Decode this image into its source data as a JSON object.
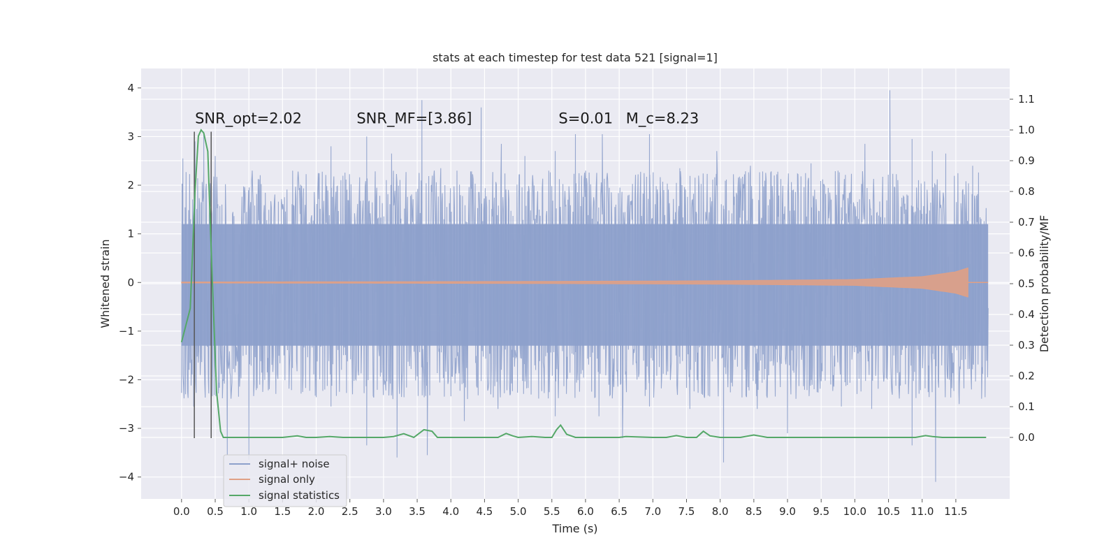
{
  "chart_data": {
    "type": "line",
    "title": "stats at each timestep for test data 521 [signal=1]",
    "xlabel": "Time (s)",
    "ylabel": "Whitened strain",
    "ylabel_right": "Detection probability/MF",
    "xlim": [
      -0.6,
      12.3
    ],
    "ylim": [
      -4.45,
      4.4
    ],
    "ylim_right": [
      -0.2,
      1.2
    ],
    "x_ticks": [
      "0.0",
      "0.5",
      "1.0",
      "1.5",
      "2.0",
      "2.5",
      "3.0",
      "3.5",
      "4.0",
      "4.5",
      "5.0",
      "5.5",
      "6.0",
      "6.5",
      "7.0",
      "7.5",
      "8.0",
      "8.5",
      "9.0",
      "9.5",
      "10.0",
      "10.5",
      "11.0",
      "11.5"
    ],
    "y_ticks": [
      "−4",
      "−3",
      "−2",
      "−1",
      "0",
      "1",
      "2",
      "3",
      "4"
    ],
    "y_ticks_right": [
      "0.0",
      "0.1",
      "0.2",
      "0.3",
      "0.4",
      "0.5",
      "0.6",
      "0.7",
      "0.8",
      "0.9",
      "1.0",
      "1.1"
    ],
    "grid": true,
    "legend_position": "lower-left",
    "annotations": [
      {
        "id": "snr-opt",
        "text": "SNR_opt=2.02",
        "x": 0.2,
        "y": 3.2
      },
      {
        "id": "snr-mf",
        "text": "SNR_MF=[3.86]",
        "x": 2.6,
        "y": 3.2
      },
      {
        "id": "s-val",
        "text": "S=0.01",
        "x": 5.6,
        "y": 3.2
      },
      {
        "id": "mc-val",
        "text": "M_c=8.23",
        "x": 6.6,
        "y": 3.2
      }
    ],
    "vertical_lines": [
      0.19,
      0.44
    ],
    "vertical_line_range": [
      -3.2,
      3.1
    ],
    "series": [
      {
        "name": "signal+ noise",
        "color": "#8da0cb",
        "axis": "left",
        "x_range": [
          0.0,
          11.98
        ],
        "typical_range": [
          -1.3,
          1.2
        ],
        "peaks": [
          [
            0.02,
            2.55
          ],
          [
            0.2,
            2.9
          ],
          [
            0.33,
            3.1
          ],
          [
            0.5,
            2.6
          ],
          [
            1.05,
            2.3
          ],
          [
            1.65,
            2.3
          ],
          [
            2.22,
            2.8
          ],
          [
            2.75,
            3.0
          ],
          [
            3.12,
            2.65
          ],
          [
            3.57,
            3.75
          ],
          [
            3.85,
            2.35
          ],
          [
            4.45,
            3.6
          ],
          [
            4.75,
            2.85
          ],
          [
            5.1,
            2.6
          ],
          [
            5.55,
            2.7
          ],
          [
            5.85,
            3.05
          ],
          [
            6.25,
            3.05
          ],
          [
            6.95,
            3.05
          ],
          [
            7.4,
            2.35
          ],
          [
            7.95,
            2.7
          ],
          [
            8.45,
            2.4
          ],
          [
            9.35,
            2.45
          ],
          [
            9.75,
            2.3
          ],
          [
            10.15,
            2.85
          ],
          [
            10.52,
            3.95
          ],
          [
            10.85,
            2.95
          ],
          [
            11.15,
            2.7
          ],
          [
            11.35,
            2.65
          ],
          [
            11.75,
            2.4
          ],
          [
            0.18,
            -2.55
          ],
          [
            0.68,
            -3.55
          ],
          [
            1.0,
            -3.65
          ],
          [
            2.22,
            -2.55
          ],
          [
            2.75,
            -3.35
          ],
          [
            3.2,
            -3.6
          ],
          [
            3.65,
            -3.55
          ],
          [
            4.2,
            -2.85
          ],
          [
            4.7,
            -2.6
          ],
          [
            5.55,
            -2.75
          ],
          [
            6.2,
            -2.75
          ],
          [
            6.55,
            -3.2
          ],
          [
            6.95,
            -2.55
          ],
          [
            7.55,
            -2.6
          ],
          [
            8.05,
            -3.7
          ],
          [
            8.55,
            -2.6
          ],
          [
            9.0,
            -3.1
          ],
          [
            9.8,
            -2.55
          ],
          [
            10.25,
            -2.6
          ],
          [
            10.85,
            -3.35
          ],
          [
            11.2,
            -4.1
          ],
          [
            11.55,
            -2.5
          ]
        ]
      },
      {
        "name": "signal only",
        "color": "#e0a085",
        "axis": "left",
        "x_range": [
          0.0,
          11.68
        ],
        "chirp_envelope": [
          [
            0.0,
            0.01
          ],
          [
            5.0,
            0.02
          ],
          [
            8.0,
            0.035
          ],
          [
            10.0,
            0.06
          ],
          [
            11.0,
            0.12
          ],
          [
            11.5,
            0.22
          ],
          [
            11.68,
            0.3
          ]
        ]
      },
      {
        "name": "signal statistics",
        "color": "#55a868",
        "axis": "right",
        "x": [
          0.0,
          0.13,
          0.2,
          0.25,
          0.29,
          0.33,
          0.39,
          0.45,
          0.52,
          0.58,
          0.62,
          1.0,
          1.5,
          1.72,
          1.85,
          2.0,
          2.2,
          2.4,
          2.7,
          3.0,
          3.15,
          3.3,
          3.45,
          3.6,
          3.72,
          3.8,
          3.9,
          4.2,
          4.5,
          4.7,
          4.82,
          4.92,
          5.0,
          5.2,
          5.4,
          5.5,
          5.57,
          5.63,
          5.72,
          5.85,
          6.0,
          6.5,
          6.6,
          7.0,
          7.2,
          7.35,
          7.5,
          7.65,
          7.75,
          7.85,
          8.0,
          8.3,
          8.5,
          8.7,
          9.0,
          9.5,
          10.0,
          10.5,
          10.9,
          11.05,
          11.15,
          11.3,
          11.6,
          11.95
        ],
        "y": [
          0.31,
          0.42,
          0.8,
          0.98,
          1.0,
          0.99,
          0.93,
          0.55,
          0.15,
          0.02,
          0.0,
          0.0,
          0.0,
          0.005,
          0.0,
          0.0,
          0.003,
          0.0,
          0.0,
          0.0,
          0.003,
          0.012,
          0.0,
          0.025,
          0.02,
          0.0,
          0.0,
          0.0,
          0.0,
          0.0,
          0.013,
          0.005,
          0.0,
          0.003,
          0.0,
          0.0,
          0.025,
          0.04,
          0.01,
          0.0,
          0.0,
          0.0,
          0.003,
          0.0,
          0.0,
          0.006,
          0.0,
          0.0,
          0.02,
          0.005,
          0.0,
          0.0,
          0.008,
          0.0,
          0.0,
          0.0,
          0.0,
          0.0,
          0.0,
          0.006,
          0.003,
          0.0,
          0.0,
          0.0
        ]
      }
    ]
  }
}
